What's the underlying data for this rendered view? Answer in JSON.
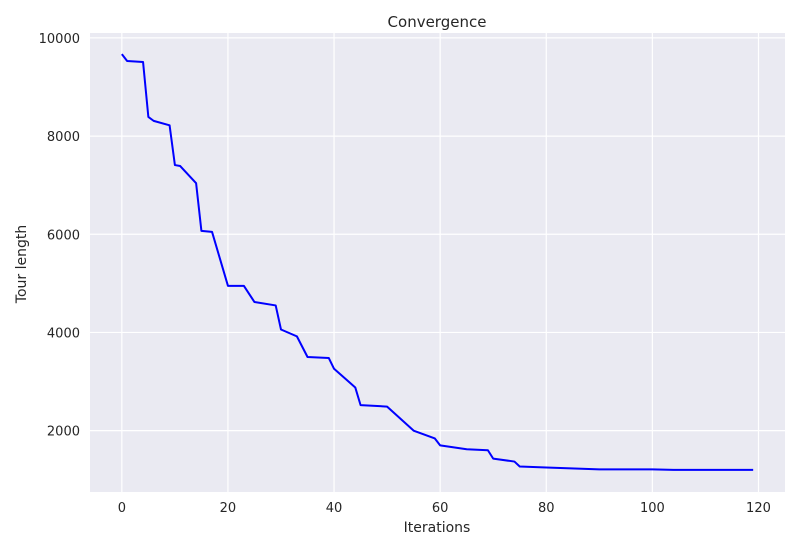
{
  "chart_data": {
    "type": "line",
    "title": "Convergence",
    "xlabel": "Iterations",
    "ylabel": "Tour length",
    "xlim": [
      -6,
      125
    ],
    "ylim": [
      750,
      10100
    ],
    "xticks": [
      0,
      20,
      40,
      60,
      80,
      100,
      120
    ],
    "yticks": [
      2000,
      4000,
      6000,
      8000,
      10000
    ],
    "grid": true,
    "legend": "none",
    "colors": {
      "background": "#eaeaf2",
      "grid": "#ffffff",
      "line": "#0000ff"
    },
    "series": [
      {
        "x": [
          0,
          1,
          4,
          5,
          6,
          9,
          10,
          11,
          14,
          15,
          17,
          20,
          23,
          25,
          29,
          30,
          33,
          35,
          37,
          39,
          40,
          44,
          45,
          50,
          55,
          59,
          60,
          65,
          69,
          70,
          74,
          75,
          80,
          90,
          100,
          104,
          119
        ],
        "y": [
          9670,
          9530,
          9510,
          8390,
          8310,
          8220,
          7410,
          7390,
          7040,
          6070,
          6050,
          4950,
          4950,
          4620,
          4550,
          4060,
          3920,
          3500,
          3490,
          3480,
          3260,
          2880,
          2520,
          2490,
          2000,
          1840,
          1700,
          1620,
          1600,
          1430,
          1370,
          1270,
          1250,
          1210,
          1210,
          1200,
          1200
        ]
      }
    ]
  }
}
